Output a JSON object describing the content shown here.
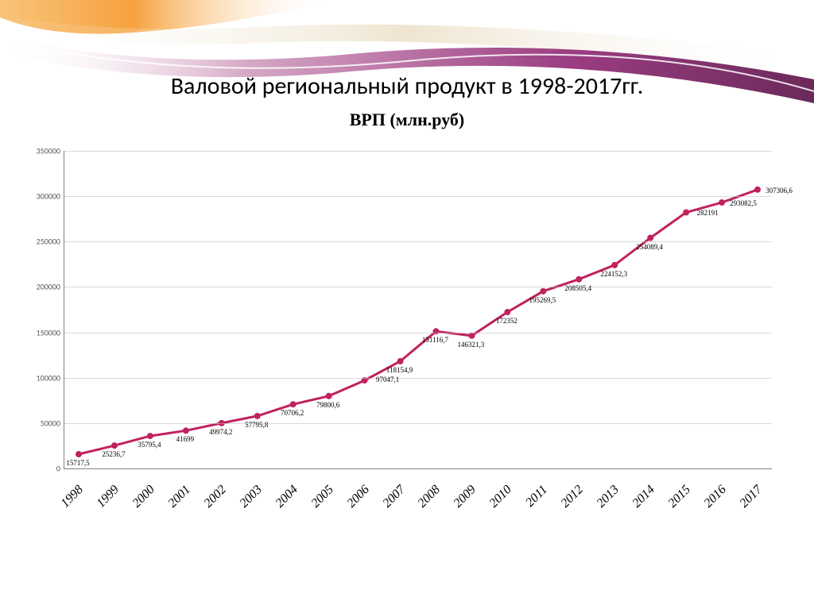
{
  "title": "Валовой региональный продукт в 1998-2017гг.",
  "subtitle": "ВРП (млн.руб)",
  "chart": {
    "type": "line",
    "line_color": "#c0225f",
    "line_width": 3,
    "marker_color": "#c0225f",
    "marker_size": 4,
    "background_color": "#ffffff",
    "grid_color": "#bfbfbf",
    "axis_color": "#808080",
    "ylim": [
      0,
      350000
    ],
    "ytick_step": 50000,
    "yticks": [
      "0",
      "50000",
      "100000",
      "150000",
      "200000",
      "250000",
      "300000",
      "350000"
    ],
    "categories": [
      "1998",
      "1999",
      "2000",
      "2001",
      "2002",
      "2003",
      "2004",
      "2005",
      "2006",
      "2007",
      "2008",
      "2009",
      "2010",
      "2011",
      "2012",
      "2013",
      "2014",
      "2015",
      "2016",
      "2017"
    ],
    "values": [
      15717.5,
      25236.7,
      35795.4,
      41699,
      49974.2,
      57795.8,
      70706.2,
      79800.6,
      97047.1,
      118154.9,
      151116.7,
      146321.3,
      172352,
      195269.5,
      208505.4,
      224152.3,
      254089.4,
      282191,
      293082.5,
      307306.6
    ],
    "data_labels": [
      "15717,5",
      "25236,7",
      "35795,4",
      "41699",
      "49974,2",
      "57795,8",
      "70706,2",
      "79800,6",
      "97047,1",
      "118154,9",
      "151116,7",
      "146321,3",
      "172352",
      "195269,5",
      "208505,4",
      "224152,3",
      "254089,4",
      "282191",
      "293082,5",
      "307306,6"
    ],
    "title_fontsize": 30,
    "subtitle_fontsize": 22,
    "ytick_fontsize": 10,
    "xtick_fontsize": 16,
    "datalabel_fontsize": 9
  },
  "decorative": {
    "colors": [
      "#f6a23d",
      "#e58bb8",
      "#9b3d82",
      "#d9c6a3",
      "#ffffff"
    ]
  }
}
